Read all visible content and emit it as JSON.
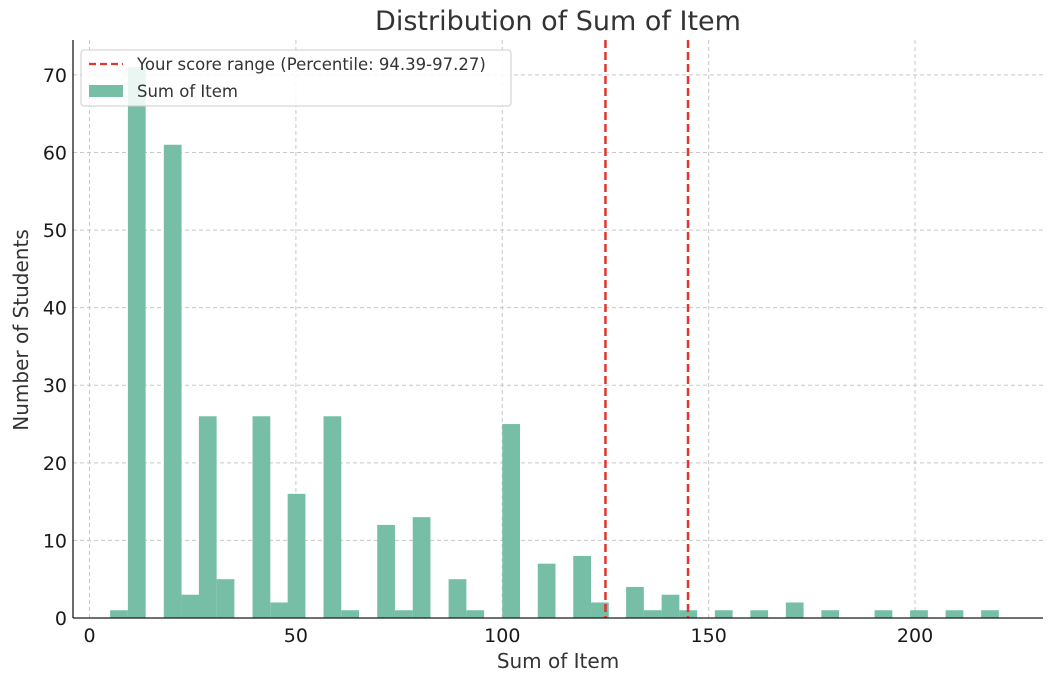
{
  "chart_data": {
    "type": "bar",
    "title": "Distribution of Sum of Item",
    "xlabel": "Sum of Item",
    "ylabel": "Number of Students",
    "xlim": [
      -4,
      231
    ],
    "ylim": [
      0,
      74.5
    ],
    "x_ticks": [
      0,
      50,
      100,
      150,
      200
    ],
    "y_ticks": [
      0,
      10,
      20,
      30,
      40,
      50,
      60,
      70
    ],
    "grid": true,
    "legend_position": "top-left",
    "bin_width": 4.3,
    "series": [
      {
        "name": "Sum of Item",
        "color": "#76bfa6",
        "bins": [
          {
            "start": 5.0,
            "count": 1
          },
          {
            "start": 9.3,
            "count": 71
          },
          {
            "start": 18.0,
            "count": 61
          },
          {
            "start": 22.3,
            "count": 3
          },
          {
            "start": 26.5,
            "count": 26
          },
          {
            "start": 30.8,
            "count": 5
          },
          {
            "start": 39.5,
            "count": 26
          },
          {
            "start": 43.8,
            "count": 2
          },
          {
            "start": 48.0,
            "count": 16
          },
          {
            "start": 56.7,
            "count": 26
          },
          {
            "start": 61.0,
            "count": 1
          },
          {
            "start": 69.7,
            "count": 12
          },
          {
            "start": 74.0,
            "count": 1
          },
          {
            "start": 78.3,
            "count": 13
          },
          {
            "start": 87.0,
            "count": 5
          },
          {
            "start": 91.3,
            "count": 1
          },
          {
            "start": 100.0,
            "count": 25
          },
          {
            "start": 108.6,
            "count": 7
          },
          {
            "start": 117.2,
            "count": 8
          },
          {
            "start": 121.5,
            "count": 2
          },
          {
            "start": 130.0,
            "count": 4
          },
          {
            "start": 134.3,
            "count": 1
          },
          {
            "start": 138.6,
            "count": 3
          },
          {
            "start": 142.9,
            "count": 1
          },
          {
            "start": 151.5,
            "count": 1
          },
          {
            "start": 160.1,
            "count": 1
          },
          {
            "start": 168.7,
            "count": 2
          },
          {
            "start": 177.3,
            "count": 1
          },
          {
            "start": 190.2,
            "count": 1
          },
          {
            "start": 198.8,
            "count": 1
          },
          {
            "start": 207.4,
            "count": 1
          },
          {
            "start": 216.0,
            "count": 1
          }
        ]
      }
    ],
    "reference_lines": {
      "label": "Your score range (Percentile: 94.39-97.27)",
      "color": "#e0362c",
      "style": "dashed",
      "x_values": [
        125,
        145
      ]
    }
  }
}
